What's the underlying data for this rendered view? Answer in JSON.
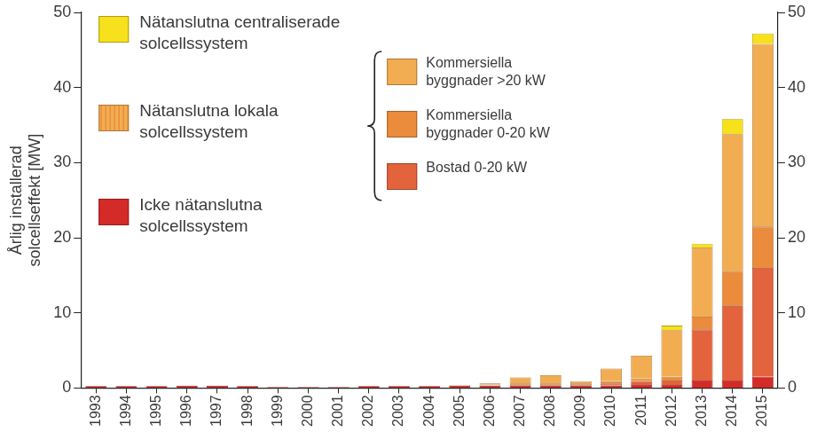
{
  "chart_data": {
    "type": "bar",
    "stacked": true,
    "y_label": "Årlig installerad solcellseffekt [MW]",
    "categories": [
      "1993",
      "1994",
      "1995",
      "1996",
      "1997",
      "1998",
      "1999",
      "2000",
      "2001",
      "2002",
      "2003",
      "2004",
      "2005",
      "2006",
      "2007",
      "2008",
      "2009",
      "2010",
      "2011",
      "2012",
      "2013",
      "2014",
      "2015"
    ],
    "series": [
      {
        "name": "Nätanslutna centraliserade solcellssystem",
        "color": "#f7e01c",
        "values": [
          0,
          0,
          0,
          0,
          0,
          0,
          0,
          0,
          0,
          0,
          0,
          0,
          0,
          0,
          0,
          0,
          0,
          0,
          0,
          0.6,
          0.5,
          2.0,
          1.4
        ]
      },
      {
        "name": "Kommersiella byggnader >20 kW",
        "group": "Nätanslutna lokala solcellssystem",
        "color": "#f2ad52",
        "values": [
          0,
          0,
          0,
          0,
          0,
          0,
          0,
          0,
          0,
          0,
          0,
          0,
          0.05,
          0.15,
          0.8,
          1.1,
          0.3,
          1.7,
          3.0,
          6.2,
          9.2,
          18.3,
          24.3
        ]
      },
      {
        "name": "Kommersiella byggnader 0-20 kW",
        "group": "Nätanslutna lokala solcellssystem",
        "color": "#ea8c3c",
        "values": [
          0,
          0,
          0,
          0,
          0,
          0,
          0,
          0,
          0,
          0,
          0,
          0,
          0.03,
          0.1,
          0.2,
          0.2,
          0.2,
          0.3,
          0.4,
          0.5,
          1.7,
          4.5,
          5.5
        ]
      },
      {
        "name": "Bostad 0-20 kW",
        "group": "Nätanslutna lokala solcellssystem",
        "color": "#e2633c",
        "values": [
          0,
          0,
          0,
          0,
          0,
          0,
          0,
          0,
          0,
          0,
          0,
          0,
          0.02,
          0.05,
          0.1,
          0.1,
          0.1,
          0.3,
          0.5,
          0.6,
          6.8,
          10.0,
          14.5
        ]
      },
      {
        "name": "Icke nätanslutna solcellssystem",
        "color": "#d42a28",
        "values": [
          0.25,
          0.25,
          0.25,
          0.3,
          0.3,
          0.25,
          0.15,
          0.15,
          0.15,
          0.25,
          0.25,
          0.25,
          0.3,
          0.3,
          0.3,
          0.3,
          0.3,
          0.3,
          0.4,
          0.4,
          1.0,
          1.0,
          1.5
        ]
      }
    ],
    "ylim": [
      0,
      50
    ],
    "yticks": [
      0,
      10,
      20,
      30,
      40,
      50
    ],
    "y2lim": [
      0,
      50
    ],
    "y2ticks": [
      0,
      10,
      20,
      30,
      40,
      50
    ],
    "grid": false,
    "legend": "top-left"
  }
}
